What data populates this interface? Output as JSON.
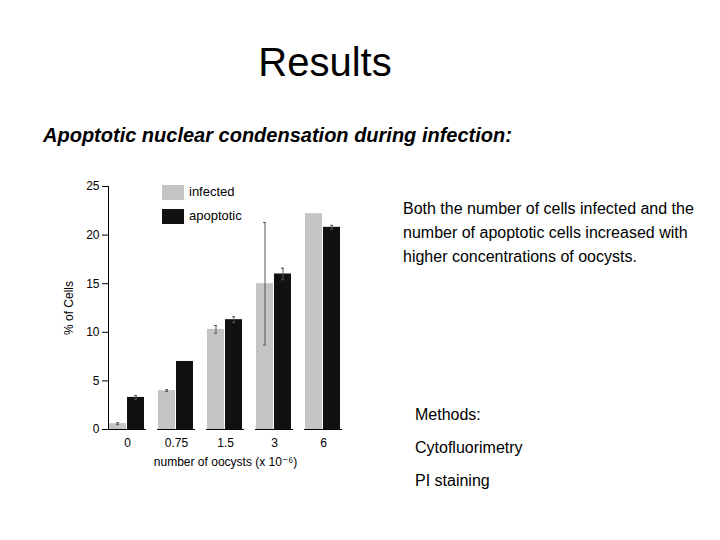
{
  "slide": {
    "title": "Results",
    "heading": "Apoptotic nuclear condensation during infection:",
    "summary": "Both the number of cells infected and the number of apoptotic cells increased with higher concentrations of oocysts.",
    "methods": [
      "Methods:",
      "Cytofluorimetry",
      "PI staining"
    ]
  },
  "chart_data": {
    "type": "bar",
    "categories": [
      0,
      0.75,
      1.5,
      3,
      6
    ],
    "x_label": "number of oocysts (x 10⁻⁶)",
    "y_label": "% of Cells",
    "series": [
      {
        "name": "infected",
        "color": "#c4c4c4",
        "values": [
          0.6,
          4.0,
          10.3,
          15.0,
          22.2
        ],
        "errors": [
          0.1,
          0.1,
          0.4,
          6.3,
          null
        ]
      },
      {
        "name": "apoptotic",
        "color": "#111111",
        "values": [
          3.3,
          7.0,
          11.3,
          16.0,
          20.8
        ],
        "errors": [
          0.2,
          null,
          0.3,
          0.6,
          0.2
        ]
      }
    ],
    "ylim": [
      0,
      25
    ],
    "yticks": [
      0,
      5,
      10,
      15,
      20,
      25
    ],
    "grid": false,
    "legend": "upper left"
  }
}
